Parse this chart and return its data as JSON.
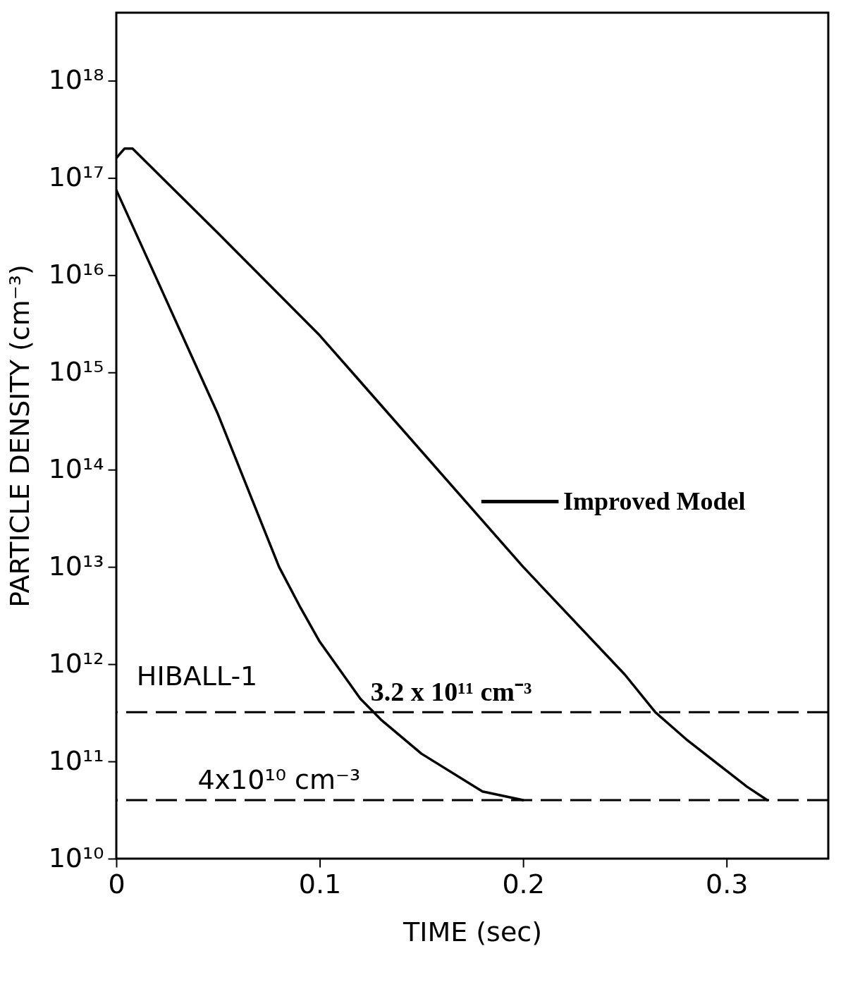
{
  "chart_data": {
    "type": "line",
    "xlabel": "TIME (sec)",
    "ylabel": "PARTICLE   DENSITY (cm⁻³)",
    "log": "y",
    "grid": false,
    "legend": "right",
    "line_style": "solid",
    "marker": "none",
    "xlim": [
      0,
      0.35
    ],
    "xticks": [
      0,
      0.1,
      0.2,
      0.3
    ],
    "ylim": [
      10000000000.0,
      5e+18
    ],
    "yticks": [
      {
        "value": 10000000000.0,
        "label": "10¹⁰"
      },
      {
        "value": 100000000000.0,
        "label": "10¹¹"
      },
      {
        "value": 1000000000000.0,
        "label": "10¹²"
      },
      {
        "value": 10000000000000.0,
        "label": "10¹³"
      },
      {
        "value": 100000000000000.0,
        "label": "10¹⁴"
      },
      {
        "value": 1000000000000000.0,
        "label": "10¹⁵"
      },
      {
        "value": 1e+16,
        "label": "10¹⁶"
      },
      {
        "value": 1e+17,
        "label": "10¹⁷"
      },
      {
        "value": 1e+18,
        "label": "10¹⁸"
      }
    ],
    "series": [
      {
        "name": "Improved Model",
        "color": "#000000",
        "x": [
          0,
          0.004,
          0.008,
          0.05,
          0.1,
          0.2,
          0.25,
          0.265,
          0.28,
          0.3,
          0.31,
          0.32
        ],
        "values": [
          1.6e+17,
          2e+17,
          2e+17,
          2.7e+16,
          2400000000000000.0,
          10000000000000.0,
          780000000000.0,
          320000000000.0,
          170000000000.0,
          80000000000.0,
          55000000000.0,
          40000000000.0
        ]
      },
      {
        "color": "#000000",
        "x": [
          0,
          0.02,
          0.05,
          0.08,
          0.09,
          0.1,
          0.12,
          0.13,
          0.15,
          0.18,
          0.2
        ],
        "values": [
          7.5e+16,
          9000000000000000.0,
          370000000000000.0,
          10000000000000.0,
          4000000000000.0,
          1700000000000.0,
          440000000000.0,
          270000000000.0,
          120000000000.0,
          49000000000.0,
          40000000000.0
        ]
      }
    ],
    "ref_lines": [
      {
        "axis": "y",
        "value": 320000000000.0,
        "label": "3.2 x 10¹¹ cm⁻³",
        "line_style": "dashed",
        "color": "#000000"
      },
      {
        "axis": "y",
        "value": 40000000000.0,
        "label": "4x10¹⁰ cm⁻³",
        "line_style": "dashed",
        "color": "#000000"
      }
    ],
    "annotations": [
      {
        "text": "HIBALL-1",
        "x": 0.01,
        "y": 320000000000.0
      }
    ]
  }
}
